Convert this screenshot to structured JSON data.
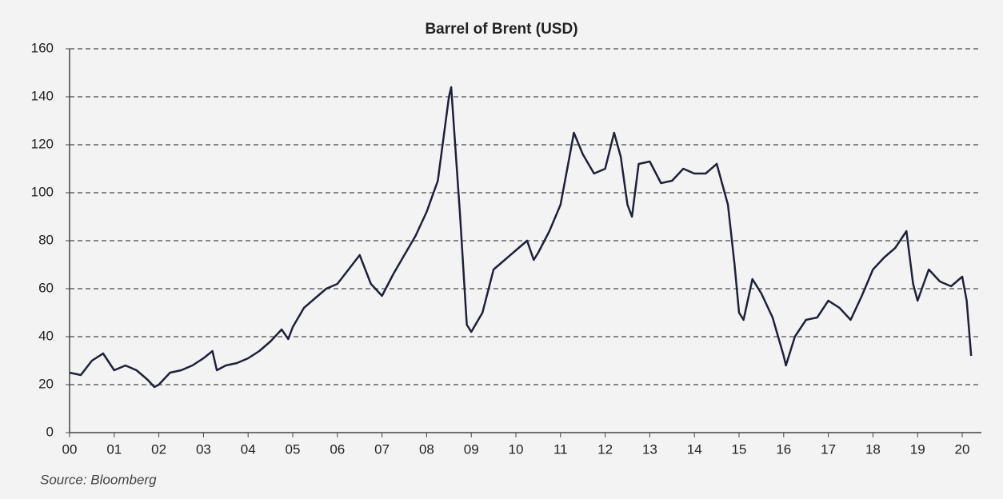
{
  "chart_data": {
    "type": "line",
    "title": "Barrel of Brent (USD)",
    "source": "Source: Bloomberg",
    "x": [
      2000.0,
      2000.25,
      2000.5,
      2000.75,
      2001.0,
      2001.25,
      2001.5,
      2001.75,
      2001.9,
      2002.0,
      2002.25,
      2002.5,
      2002.75,
      2003.0,
      2003.2,
      2003.3,
      2003.5,
      2003.75,
      2004.0,
      2004.25,
      2004.5,
      2004.75,
      2004.9,
      2005.0,
      2005.25,
      2005.5,
      2005.75,
      2006.0,
      2006.25,
      2006.5,
      2006.75,
      2007.0,
      2007.25,
      2007.5,
      2007.75,
      2008.0,
      2008.25,
      2008.5,
      2008.55,
      2008.75,
      2008.9,
      2009.0,
      2009.25,
      2009.5,
      2009.75,
      2010.0,
      2010.25,
      2010.4,
      2010.5,
      2010.75,
      2011.0,
      2011.2,
      2011.3,
      2011.5,
      2011.75,
      2012.0,
      2012.2,
      2012.35,
      2012.5,
      2012.6,
      2012.75,
      2013.0,
      2013.25,
      2013.5,
      2013.75,
      2014.0,
      2014.25,
      2014.5,
      2014.75,
      2014.9,
      2015.0,
      2015.1,
      2015.3,
      2015.5,
      2015.75,
      2016.0,
      2016.05,
      2016.25,
      2016.5,
      2016.75,
      2017.0,
      2017.25,
      2017.5,
      2017.75,
      2018.0,
      2018.25,
      2018.5,
      2018.75,
      2018.9,
      2019.0,
      2019.25,
      2019.5,
      2019.75,
      2020.0,
      2020.1,
      2020.2
    ],
    "series": [
      {
        "name": "Brent",
        "color": "#1f2238",
        "values": [
          25,
          24,
          30,
          33,
          26,
          28,
          26,
          22,
          19,
          20,
          25,
          26,
          28,
          31,
          34,
          26,
          28,
          29,
          31,
          34,
          38,
          43,
          39,
          44,
          52,
          56,
          60,
          62,
          68,
          74,
          62,
          57,
          66,
          74,
          82,
          92,
          105,
          140,
          144,
          90,
          45,
          42,
          50,
          68,
          72,
          76,
          80,
          72,
          75,
          84,
          95,
          115,
          125,
          116,
          108,
          110,
          125,
          115,
          95,
          90,
          112,
          113,
          104,
          105,
          110,
          108,
          108,
          112,
          95,
          70,
          50,
          47,
          64,
          58,
          48,
          32,
          28,
          40,
          47,
          48,
          55,
          52,
          47,
          57,
          68,
          73,
          77,
          84,
          62,
          55,
          68,
          63,
          61,
          65,
          55,
          32
        ]
      }
    ],
    "xlim": [
      2000,
      2020.43
    ],
    "ylim": [
      0,
      160
    ],
    "xticks": [
      {
        "value": 2000,
        "label": "00"
      },
      {
        "value": 2001,
        "label": "01"
      },
      {
        "value": 2002,
        "label": "02"
      },
      {
        "value": 2003,
        "label": "03"
      },
      {
        "value": 2004,
        "label": "04"
      },
      {
        "value": 2005,
        "label": "05"
      },
      {
        "value": 2006,
        "label": "06"
      },
      {
        "value": 2007,
        "label": "07"
      },
      {
        "value": 2008,
        "label": "08"
      },
      {
        "value": 2009,
        "label": "09"
      },
      {
        "value": 2010,
        "label": "10"
      },
      {
        "value": 2011,
        "label": "11"
      },
      {
        "value": 2012,
        "label": "12"
      },
      {
        "value": 2013,
        "label": "13"
      },
      {
        "value": 2014,
        "label": "14"
      },
      {
        "value": 2015,
        "label": "15"
      },
      {
        "value": 2016,
        "label": "16"
      },
      {
        "value": 2017,
        "label": "17"
      },
      {
        "value": 2018,
        "label": "18"
      },
      {
        "value": 2019,
        "label": "19"
      },
      {
        "value": 2020,
        "label": "20"
      }
    ],
    "yticks": [
      0,
      20,
      40,
      60,
      80,
      100,
      120,
      140,
      160
    ],
    "grid": true
  }
}
